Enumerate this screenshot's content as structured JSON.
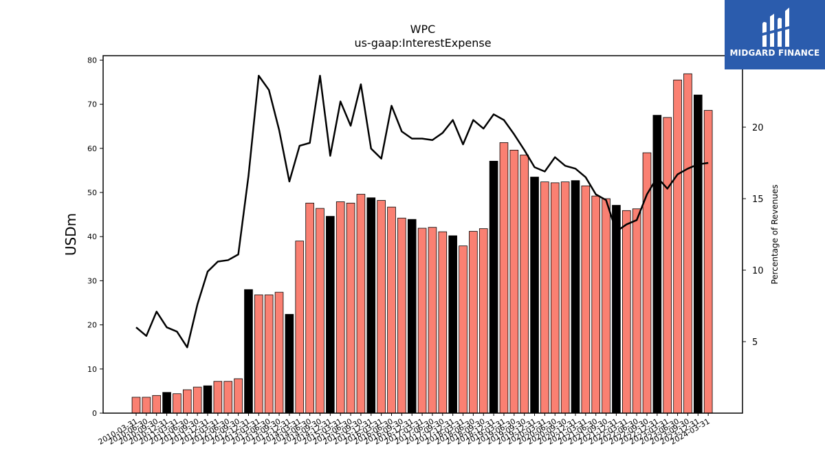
{
  "brand": {
    "name": "MIDGARD FINANCE"
  },
  "chart_data": {
    "type": "bar",
    "title": "WPC",
    "subtitle": "us-gaap:InterestExpense",
    "ylabel": "USDm",
    "y2label": "Percentage of Revenues",
    "ylim": [
      0,
      81
    ],
    "y2lim": [
      0.0,
      25.0
    ],
    "yticks": [
      0,
      10,
      20,
      30,
      40,
      50,
      60,
      70,
      80
    ],
    "y2ticks": [
      5,
      10,
      15,
      20
    ],
    "colors": {
      "bar": "#fa8072",
      "bar_q4": "#000000",
      "line": "#000000"
    },
    "categories": [
      "2010-03-31",
      "2010-06-30",
      "2010-09-30",
      "2010-12-31",
      "2011-03-31",
      "2011-06-30",
      "2011-09-30",
      "2011-12-31",
      "2012-03-31",
      "2012-06-30",
      "2012-09-30",
      "2012-12-31",
      "2013-03-31",
      "2013-06-30",
      "2013-09-30",
      "2013-12-31",
      "2014-03-31",
      "2014-06-30",
      "2014-09-30",
      "2014-12-31",
      "2015-03-31",
      "2015-06-30",
      "2015-09-30",
      "2015-12-31",
      "2016-03-31",
      "2016-06-30",
      "2016-09-30",
      "2016-12-31",
      "2017-03-31",
      "2017-06-30",
      "2017-09-30",
      "2017-12-31",
      "2018-03-31",
      "2018-06-30",
      "2018-09-30",
      "2018-12-31",
      "2019-03-31",
      "2019-06-30",
      "2019-09-30",
      "2019-12-31",
      "2020-03-31",
      "2020-06-30",
      "2020-09-30",
      "2020-12-31",
      "2021-03-31",
      "2021-06-30",
      "2021-09-30",
      "2021-12-31",
      "2022-03-31",
      "2022-06-30",
      "2022-09-30",
      "2022-12-31",
      "2023-03-31",
      "2023-06-30",
      "2023-09-30",
      "2023-12-31",
      "2024-03-31"
    ],
    "values": [
      3.6,
      3.6,
      4.0,
      4.7,
      4.4,
      5.3,
      5.9,
      6.2,
      7.2,
      7.2,
      7.8,
      28.0,
      26.8,
      26.8,
      27.4,
      22.4,
      39.0,
      47.6,
      46.4,
      44.6,
      47.9,
      47.6,
      49.6,
      48.8,
      48.2,
      46.7,
      44.2,
      43.9,
      41.9,
      42.1,
      41.1,
      40.2,
      37.9,
      41.2,
      41.8,
      57.1,
      61.3,
      59.6,
      58.5,
      53.5,
      52.4,
      52.2,
      52.4,
      52.7,
      51.5,
      49.2,
      48.6,
      47.1,
      45.9,
      46.3,
      59.0,
      67.5,
      67.0,
      75.5,
      76.9,
      72.1,
      68.6
    ],
    "q4_flags": [
      false,
      false,
      false,
      true,
      false,
      false,
      false,
      true,
      false,
      false,
      false,
      true,
      false,
      false,
      false,
      true,
      false,
      false,
      false,
      true,
      false,
      false,
      false,
      true,
      false,
      false,
      false,
      true,
      false,
      false,
      false,
      true,
      false,
      false,
      false,
      true,
      false,
      false,
      false,
      true,
      false,
      false,
      false,
      true,
      false,
      false,
      false,
      true,
      false,
      false,
      false,
      true,
      false,
      false,
      false,
      true,
      false
    ],
    "line_values": [
      6.0,
      5.4,
      7.1,
      6.0,
      5.7,
      4.6,
      7.6,
      9.9,
      10.6,
      10.7,
      11.1,
      16.6,
      23.6,
      22.6,
      19.8,
      16.2,
      18.7,
      18.9,
      23.6,
      18.0,
      21.8,
      20.1,
      23.0,
      18.5,
      17.8,
      21.5,
      19.7,
      19.2,
      19.2,
      19.1,
      19.6,
      20.5,
      18.8,
      20.5,
      19.9,
      20.9,
      20.5,
      19.5,
      18.4,
      17.2,
      16.9,
      17.9,
      17.3,
      17.1,
      16.5,
      15.3,
      14.9,
      12.7,
      13.2,
      13.5,
      15.3,
      16.5,
      15.7,
      16.7,
      17.1,
      17.4,
      17.5
    ]
  }
}
